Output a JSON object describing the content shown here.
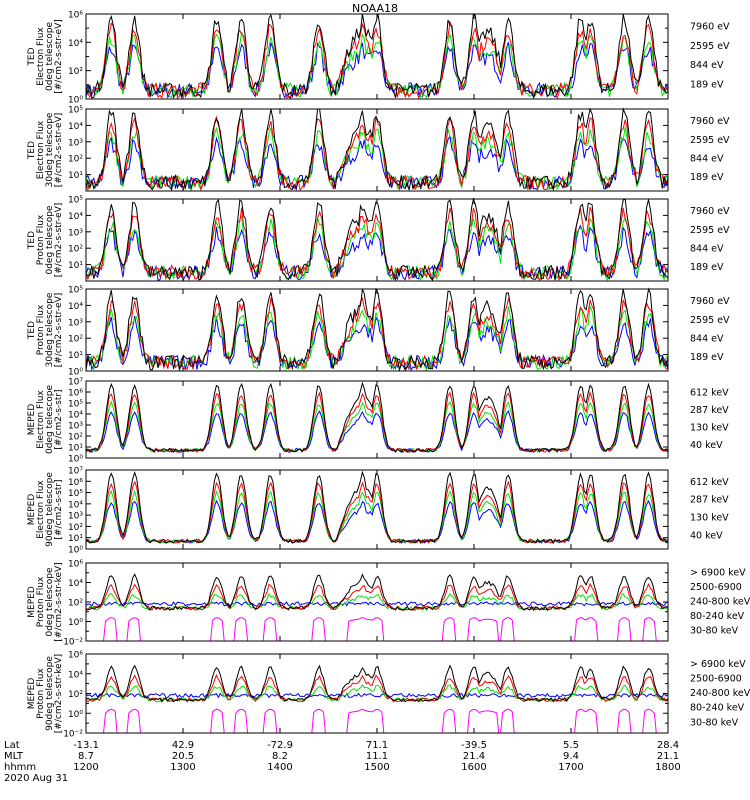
{
  "title": "NOAA18",
  "colors": {
    "blue": "#0000ff",
    "red": "#ff0000",
    "green": "#00e600",
    "black": "#000000",
    "magenta": "#ff00ff"
  },
  "panels": [
    {
      "ylabel": [
        "TED",
        "Electron Flux",
        "0deg telescope",
        "[#/cm2-s-str-eV]"
      ],
      "ticks": [
        [
          0,
          "10⁰"
        ],
        [
          2,
          "10²"
        ],
        [
          4,
          "10⁴"
        ],
        [
          6,
          "10⁶"
        ]
      ],
      "minor": [
        1,
        3,
        5
      ],
      "ymin": 0,
      "ymax": 6,
      "legend": [
        [
          "7960 eV",
          "black"
        ],
        [
          "2595 eV",
          "red"
        ],
        [
          "844 eV",
          "green"
        ],
        [
          "189 eV",
          "blue"
        ]
      ]
    },
    {
      "ylabel": [
        "TED",
        "Electron Flux",
        "30deg telescope",
        "[#/cm2-s-str-eV]"
      ],
      "ticks": [
        [
          1,
          "10¹"
        ],
        [
          2,
          "10²"
        ],
        [
          3,
          "10³"
        ],
        [
          4,
          "10⁴"
        ],
        [
          5,
          "10⁵"
        ]
      ],
      "minor": [],
      "ymin": 0,
      "ymax": 5,
      "legend": [
        [
          "7960 eV",
          "black"
        ],
        [
          "2595 eV",
          "red"
        ],
        [
          "844 eV",
          "green"
        ],
        [
          "189 eV",
          "blue"
        ]
      ]
    },
    {
      "ylabel": [
        "TED",
        "Proton Flux",
        "0deg telescope",
        "[#/cm2-s-str-eV]"
      ],
      "ticks": [
        [
          1,
          "10¹"
        ],
        [
          2,
          "10²"
        ],
        [
          3,
          "10³"
        ],
        [
          4,
          "10⁴"
        ],
        [
          5,
          "10⁵"
        ]
      ],
      "minor": [],
      "ymin": 0,
      "ymax": 5,
      "legend": [
        [
          "7960 eV",
          "black"
        ],
        [
          "2595 eV",
          "red"
        ],
        [
          "844 eV",
          "green"
        ],
        [
          "189 eV",
          "blue"
        ]
      ]
    },
    {
      "ylabel": [
        "TED",
        "Proton Flux",
        "30deg telescope",
        "[#/cm2-s-str-eV]"
      ],
      "ticks": [
        [
          0,
          "10⁰"
        ],
        [
          1,
          "10¹"
        ],
        [
          2,
          "10²"
        ],
        [
          3,
          "10³"
        ],
        [
          4,
          "10⁴"
        ],
        [
          5,
          "10⁵"
        ]
      ],
      "minor": [],
      "ymin": 0,
      "ymax": 5,
      "legend": [
        [
          "7960 eV",
          "black"
        ],
        [
          "2595 eV",
          "red"
        ],
        [
          "844 eV",
          "green"
        ],
        [
          "189 eV",
          "blue"
        ]
      ]
    },
    {
      "ylabel": [
        "MEPED",
        "Electron Flux",
        "0deg telescope",
        "[#/cm2-s-str]"
      ],
      "ticks": [
        [
          0,
          "10⁰"
        ],
        [
          1,
          "10¹"
        ],
        [
          2,
          "10²"
        ],
        [
          3,
          "10³"
        ],
        [
          4,
          "10⁴"
        ],
        [
          5,
          "10⁵"
        ],
        [
          6,
          "10⁶"
        ],
        [
          7,
          "10⁷"
        ]
      ],
      "minor": [],
      "ymin": 0,
      "ymax": 7,
      "legend": [
        [
          "612 keV",
          "black"
        ],
        [
          "287 keV",
          "red"
        ],
        [
          "130 keV",
          "green"
        ],
        [
          "40 keV",
          "blue"
        ]
      ]
    },
    {
      "ylabel": [
        "MEPED",
        "Electron Flux",
        "90deg telescope",
        "[#/cm2-s-str]"
      ],
      "ticks": [
        [
          0,
          "10⁰"
        ],
        [
          1,
          "10¹"
        ],
        [
          2,
          "10²"
        ],
        [
          3,
          "10³"
        ],
        [
          4,
          "10⁴"
        ],
        [
          5,
          "10⁵"
        ],
        [
          6,
          "10⁶"
        ],
        [
          7,
          "10⁷"
        ]
      ],
      "minor": [],
      "ymin": 0,
      "ymax": 7,
      "legend": [
        [
          "612 keV",
          "black"
        ],
        [
          "287 keV",
          "red"
        ],
        [
          "130 keV",
          "green"
        ],
        [
          "40 keV",
          "blue"
        ]
      ]
    },
    {
      "ylabel": [
        "MEPED",
        "Proton Flux",
        "0deg telescope",
        "[#/cm2-s-str-keV]"
      ],
      "ticks": [
        [
          -2,
          "10⁻²"
        ],
        [
          0,
          "10⁰"
        ],
        [
          2,
          "10²"
        ],
        [
          4,
          "10⁴"
        ],
        [
          6,
          "10⁶"
        ]
      ],
      "minor": [
        -1,
        1,
        3,
        5
      ],
      "ymin": -2,
      "ymax": 6,
      "legend": [
        [
          "> 6900 keV",
          "magenta"
        ],
        [
          "2500-6900",
          "black"
        ],
        [
          "240-800 keV",
          "red"
        ],
        [
          "80-240 keV",
          "green"
        ],
        [
          "30-80 keV",
          "blue"
        ]
      ]
    },
    {
      "ylabel": [
        "MEPED",
        "Proton Flux",
        "90deg telescope",
        "[#/cm2-s-str-keV]"
      ],
      "ticks": [
        [
          -2,
          "10⁻²"
        ],
        [
          0,
          "10⁰"
        ],
        [
          2,
          "10²"
        ],
        [
          4,
          "10⁴"
        ],
        [
          6,
          "10⁶"
        ]
      ],
      "minor": [
        -1,
        1,
        3,
        5
      ],
      "ymin": -2,
      "ymax": 6,
      "legend": [
        [
          "> 6900 keV",
          "magenta"
        ],
        [
          "2500-6900",
          "black"
        ],
        [
          "240-800 keV",
          "red"
        ],
        [
          "80-240 keV",
          "green"
        ],
        [
          "30-80 keV",
          "blue"
        ]
      ]
    }
  ],
  "xaxis": {
    "row_labels": [
      "Lat",
      "MLT",
      "hhmm"
    ],
    "date": "2020 Aug 31",
    "columns": [
      {
        "lat": "-13.1",
        "mlt": "8.7",
        "hhmm": "1200"
      },
      {
        "lat": "42.9",
        "mlt": "20.5",
        "hhmm": "1300"
      },
      {
        "lat": "-72.9",
        "mlt": "8.2",
        "hhmm": "1400"
      },
      {
        "lat": "71.1",
        "mlt": "11.1",
        "hhmm": "1500"
      },
      {
        "lat": "-39.5",
        "mlt": "21.4",
        "hhmm": "1600"
      },
      {
        "lat": "5.5",
        "mlt": "9.4",
        "hhmm": "1700"
      },
      {
        "lat": "28.4",
        "mlt": "21.1",
        "hhmm": "1800"
      }
    ]
  },
  "chart_data": {
    "type": "line",
    "title": "NOAA18",
    "x_unit": "hhmm (UT)",
    "xlim": [
      "1200",
      "1800"
    ],
    "y_scale": "log10",
    "bursts_hours": [
      0.26,
      0.5,
      1.35,
      1.6,
      1.9,
      2.4,
      2.85,
      3.0,
      3.75,
      4.0,
      4.35,
      5.1,
      5.2,
      5.55,
      5.8
    ],
    "series_per_panel": {
      "TED": [
        "7960 eV",
        "2595 eV",
        "844 eV",
        "189 eV"
      ],
      "MEPED Electron": [
        "612 keV",
        "287 keV",
        "130 keV",
        "40 keV"
      ],
      "MEPED Proton": [
        "> 6900 keV",
        "2500-6900",
        "240-800 keV",
        "80-240 keV",
        "30-80 keV"
      ]
    }
  }
}
